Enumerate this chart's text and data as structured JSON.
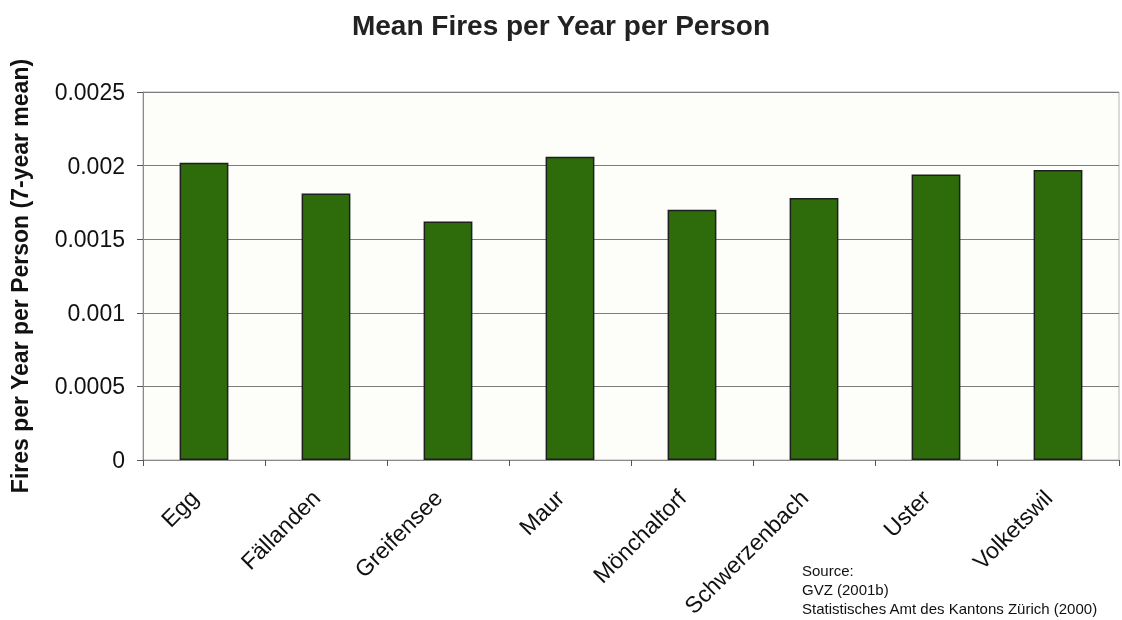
{
  "chart_data": {
    "type": "bar",
    "title": "Mean Fires per Year per Person",
    "ylabel": "Fires per Year per Person (7-year mean)",
    "categories": [
      "Egg",
      "Fällanden",
      "Greifensee",
      "Maur",
      "Mönchaltorf",
      "Schwerzenbach",
      "Uster",
      "Volketswil"
    ],
    "values": [
      0.00202,
      0.00181,
      0.00162,
      0.00206,
      0.0017,
      0.00178,
      0.00194,
      0.00197
    ],
    "color": "#2e6b0b",
    "ylim": [
      0,
      0.0025
    ],
    "yticks": [
      0,
      0.0005,
      0.001,
      0.0015,
      0.002,
      0.0025
    ],
    "grid": "y",
    "annotations": [
      "Source:",
      "GVZ (2001b)",
      "Statistisches Amt des Kantons Zürich (2000)"
    ]
  }
}
